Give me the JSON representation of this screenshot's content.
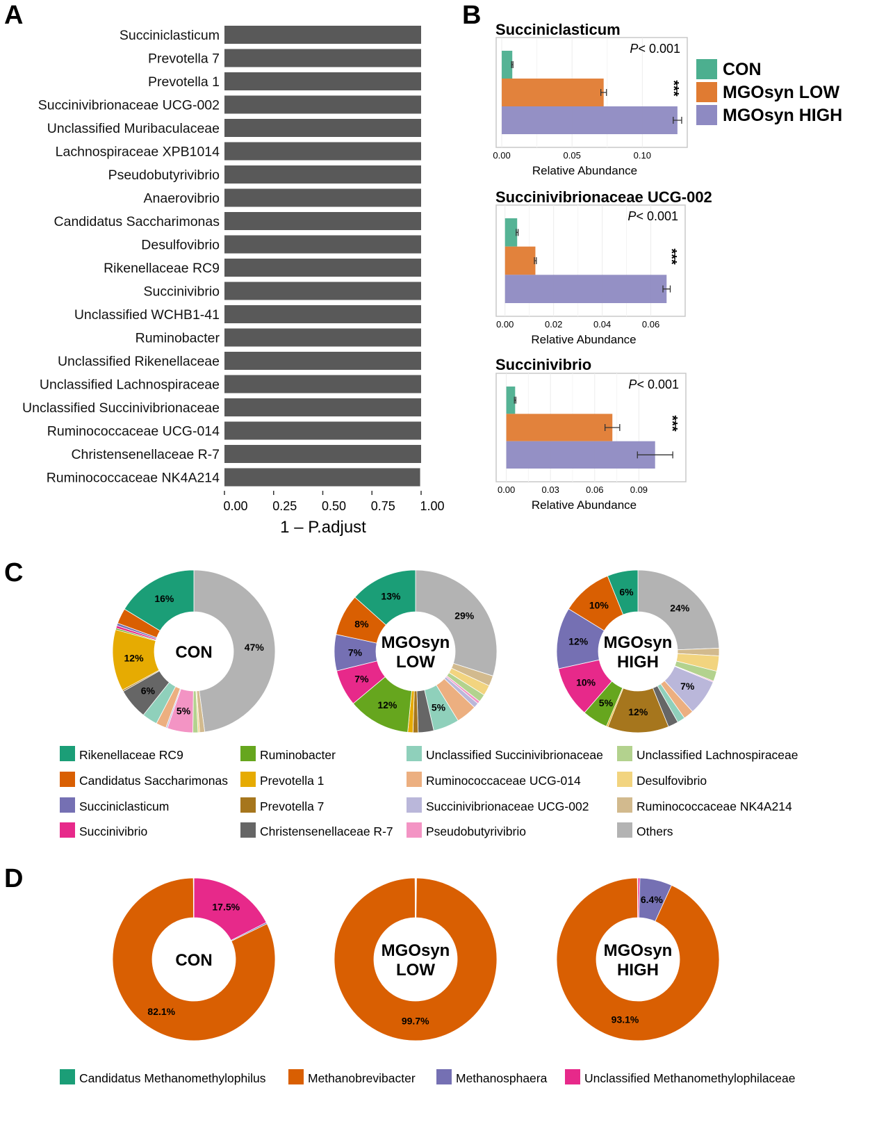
{
  "panel_letters": [
    "A",
    "B",
    "C",
    "D"
  ],
  "chart_data": [
    {
      "id": "A",
      "type": "bar",
      "orientation": "horizontal",
      "categories": [
        "Succiniclasticum",
        "Prevotella 7",
        "Prevotella 1",
        "Succinivibrionaceae UCG-002",
        "Unclassified Muribaculaceae",
        "Lachnospiraceae XPB1014",
        "Pseudobutyrivibrio",
        "Anaerovibrio",
        "Candidatus Saccharimonas",
        "Desulfovibrio",
        "Rikenellaceae RC9",
        "Succinivibrio",
        "Unclassified WCHB1-41",
        "Ruminobacter",
        "Unclassified Rikenellaceae",
        "Unclassified Lachnospiraceae",
        "Unclassified Succinivibrionaceae",
        "Ruminococcaceae UCG-014",
        "Christensenellaceae R-7",
        "Ruminococcaceae NK4A214"
      ],
      "values": [
        1,
        1,
        1,
        1,
        1,
        1,
        1,
        1,
        1,
        1,
        1,
        1,
        1,
        1,
        1,
        1,
        1,
        1,
        1,
        0.995
      ],
      "xlabel": "1 – P.adjust",
      "xlim": [
        0,
        1
      ],
      "xticks": [
        "0.00",
        "0.25",
        "0.50",
        "0.75",
        "1.00"
      ],
      "color": "#595959"
    },
    {
      "id": "B",
      "type": "bar",
      "orientation": "horizontal",
      "legend": {
        "position": "right",
        "entries": [
          {
            "name": "CON",
            "color": "#4caf8f"
          },
          {
            "name": "MGOsyn LOW",
            "color": "#e07b32"
          },
          {
            "name": "MGOsyn HIGH",
            "color": "#8e8ac2"
          }
        ]
      },
      "subplots": [
        {
          "title": "Succiniclasticum",
          "p_text": "< 0.001",
          "p_label": "P",
          "sig": "***",
          "xlabel": "Relative Abundance",
          "xlim": [
            -0.002,
            0.13
          ],
          "xticks": [
            0,
            0.05,
            0.1
          ],
          "xtick_labels": [
            "0.00",
            "0.05",
            "0.10"
          ],
          "values": [
            0.0075,
            0.0725,
            0.125
          ],
          "errors": [
            0.0005,
            0.002,
            0.003
          ]
        },
        {
          "title": "Succinivibrionaceae UCG-002",
          "p_text": "< 0.001",
          "p_label": "P",
          "sig": "***",
          "xlabel": "Relative Abundance",
          "xlim": [
            -0.0025,
            0.073
          ],
          "xticks": [
            0,
            0.02,
            0.04,
            0.06
          ],
          "xtick_labels": [
            "0.00",
            "0.02",
            "0.04",
            "0.06"
          ],
          "values": [
            0.005,
            0.0125,
            0.0665
          ],
          "errors": [
            0.0004,
            0.0004,
            0.0015
          ]
        },
        {
          "title": "Succinivibrio",
          "p_text": "< 0.001",
          "p_label": "P",
          "sig": "***",
          "xlabel": "Relative Abundance",
          "xlim": [
            -0.005,
            0.12
          ],
          "xticks": [
            0,
            0.03,
            0.06,
            0.09
          ],
          "xtick_labels": [
            "0.00",
            "0.03",
            "0.06",
            "0.09"
          ],
          "values": [
            0.006,
            0.072,
            0.101
          ],
          "errors": [
            0.0005,
            0.005,
            0.012
          ]
        }
      ]
    },
    {
      "id": "C",
      "type": "pie",
      "style": "donut",
      "legend": {
        "position": "bottom",
        "columns": 4,
        "entries": [
          {
            "name": "Rikenellaceae RC9",
            "color": "#1b9e77"
          },
          {
            "name": "Candidatus Saccharimonas",
            "color": "#d95f02"
          },
          {
            "name": "Succiniclasticum",
            "color": "#7570b3"
          },
          {
            "name": "Succinivibrio",
            "color": "#e7298a"
          },
          {
            "name": "Ruminobacter",
            "color": "#66a61e"
          },
          {
            "name": "Prevotella 1",
            "color": "#e6ab02"
          },
          {
            "name": "Prevotella 7",
            "color": "#a6761d"
          },
          {
            "name": "Christensenellaceae R-7",
            "color": "#666666"
          },
          {
            "name": "Unclassified Succinivibrionaceae",
            "color": "#8fd0bb"
          },
          {
            "name": "Ruminococcaceae UCG-014",
            "color": "#ecaf80"
          },
          {
            "name": "Succinivibrionaceae UCG-002",
            "color": "#bab7da"
          },
          {
            "name": "Pseudobutyrivibrio",
            "color": "#f394c4"
          },
          {
            "name": "Unclassified Lachnospiraceae",
            "color": "#b3d28e"
          },
          {
            "name": "Desulfovibrio",
            "color": "#f2d47f"
          },
          {
            "name": "Ruminococcaceae NK4A214",
            "color": "#d2ba8e"
          },
          {
            "name": "Others",
            "color": "#b3b3b3"
          }
        ]
      },
      "slice_order": "Others first, clockwise from top, then reverse legend order",
      "pies": [
        {
          "center_label": [
            "CON"
          ],
          "values": [
            16,
            3,
            0.5,
            0.5,
            0.3,
            12,
            0.3,
            6,
            3,
            2,
            0.3,
            5,
            1,
            0.3,
            1,
            47
          ],
          "labels": [
            "16%",
            "",
            "",
            "",
            "",
            "12%",
            "",
            "6%",
            "",
            "",
            "",
            "5%",
            "",
            "",
            "",
            "47%"
          ]
        },
        {
          "center_label": [
            "MGOsyn",
            "LOW"
          ],
          "values": [
            13,
            8,
            7,
            7,
            12,
            1,
            1,
            3,
            5,
            4,
            1,
            0.5,
            1.5,
            2,
            2,
            29
          ],
          "labels": [
            "13%",
            "8%",
            "7%",
            "7%",
            "12%",
            "",
            "",
            "",
            "5%",
            "",
            "",
            "",
            "",
            "",
            "",
            "29%"
          ]
        },
        {
          "center_label": [
            "MGOsyn",
            "HIGH"
          ],
          "values": [
            6,
            10,
            12,
            10,
            5,
            0.3,
            12,
            2,
            1.5,
            2,
            7,
            0.2,
            2,
            3,
            1.5,
            24
          ],
          "labels": [
            "6%",
            "10%",
            "12%",
            "10%",
            "5%",
            "",
            "12%",
            "",
            "",
            "",
            "7%",
            "",
            "",
            "",
            "",
            "24%"
          ]
        }
      ]
    },
    {
      "id": "D",
      "type": "pie",
      "style": "donut",
      "legend": {
        "position": "bottom",
        "columns": 4,
        "entries": [
          {
            "name": "Candidatus Methanomethylophilus",
            "color": "#1b9e77"
          },
          {
            "name": "Methanobrevibacter",
            "color": "#d95f02"
          },
          {
            "name": "Methanosphaera",
            "color": "#7570b3"
          },
          {
            "name": "Unclassified Methanomethylophilaceae",
            "color": "#e7298a"
          }
        ]
      },
      "pies": [
        {
          "center_label": [
            "CON"
          ],
          "values": [
            0.1,
            82.1,
            0.3,
            17.5
          ],
          "labels": [
            "",
            "82.1%",
            "",
            "17.5%"
          ]
        },
        {
          "center_label": [
            "MGOsyn",
            "LOW"
          ],
          "values": [
            0.1,
            99.7,
            0.1,
            0.1
          ],
          "labels": [
            "",
            "99.7%",
            "",
            ""
          ]
        },
        {
          "center_label": [
            "MGOsyn",
            "HIGH"
          ],
          "values": [
            0.1,
            93.1,
            6.4,
            0.4
          ],
          "labels": [
            "",
            "93.1%",
            "6.4%",
            ""
          ]
        }
      ]
    }
  ]
}
